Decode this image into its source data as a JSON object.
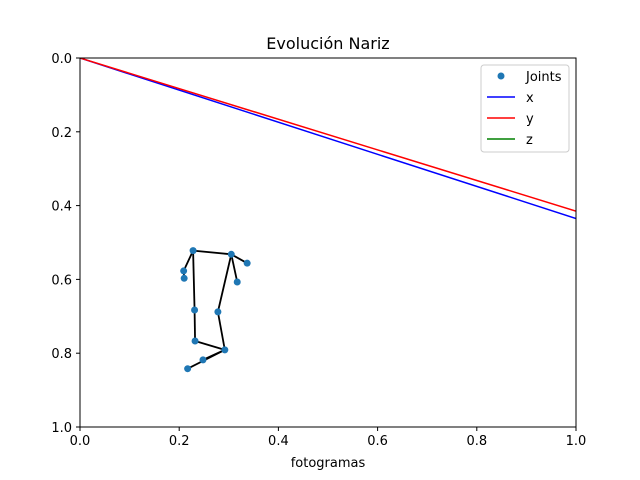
{
  "chart_data": {
    "type": "line",
    "title": "Evolución Nariz",
    "xlabel": "fotogramas",
    "ylabel": "",
    "xlim": [
      0,
      1
    ],
    "ylim": [
      1,
      0
    ],
    "y_inverted": true,
    "grid": false,
    "legend_position": "top-right",
    "x_ticks": [
      "0.0",
      "0.2",
      "0.4",
      "0.6",
      "0.8",
      "1.0"
    ],
    "y_ticks": [
      "0.0",
      "0.2",
      "0.4",
      "0.6",
      "0.8",
      "1.0"
    ],
    "series": [
      {
        "name": "x",
        "color": "#0000ff",
        "x": [
          0,
          1
        ],
        "y": [
          0,
          0.435
        ]
      },
      {
        "name": "y",
        "color": "#ff0000",
        "x": [
          0,
          1
        ],
        "y": [
          0,
          0.415
        ]
      },
      {
        "name": "z",
        "color": "#008000",
        "x": [],
        "y": []
      }
    ],
    "joints": {
      "name": "Joints",
      "color": "#1f77b4",
      "points": [
        [
          0.228,
          0.522
        ],
        [
          0.305,
          0.532
        ],
        [
          0.337,
          0.556
        ],
        [
          0.317,
          0.607
        ],
        [
          0.209,
          0.577
        ],
        [
          0.21,
          0.597
        ],
        [
          0.231,
          0.683
        ],
        [
          0.278,
          0.688
        ],
        [
          0.232,
          0.767
        ],
        [
          0.292,
          0.791
        ],
        [
          0.248,
          0.818
        ],
        [
          0.217,
          0.842
        ]
      ],
      "skeleton_color": "#000000",
      "skeleton": [
        [
          4,
          0
        ],
        [
          0,
          1
        ],
        [
          1,
          3
        ],
        [
          1,
          2
        ],
        [
          0,
          6
        ],
        [
          6,
          8
        ],
        [
          8,
          9
        ],
        [
          9,
          7
        ],
        [
          7,
          1
        ],
        [
          9,
          10
        ],
        [
          9,
          11
        ],
        [
          5,
          4
        ]
      ]
    }
  }
}
